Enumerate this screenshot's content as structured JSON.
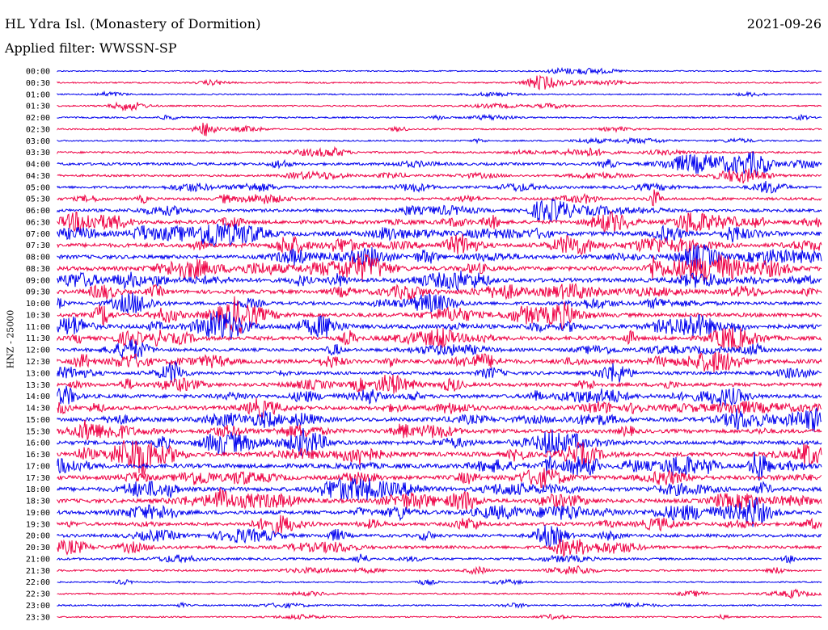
{
  "header": {
    "station": "HL Ydra Isl. (Monastery of Dormition)",
    "date": "2021-09-26",
    "filter": "Applied filter: WWSSN-SP"
  },
  "axis": {
    "ylabel": "HNZ - 25000"
  },
  "colors": {
    "even_trace": "#0000ee",
    "odd_trace": "#ee0044",
    "text": "#000000",
    "background": "#ffffff"
  },
  "chart_data": {
    "type": "line",
    "title": "HL Ydra Isl. (Monastery of Dormition)",
    "ylabel": "HNZ - 25000",
    "xlabel": "",
    "grid": false,
    "legend": "none",
    "rows": [
      {
        "time": "00:00",
        "activity": 0.05
      },
      {
        "time": "00:30",
        "activity": 0.12
      },
      {
        "time": "01:00",
        "activity": 0.08
      },
      {
        "time": "01:30",
        "activity": 0.12
      },
      {
        "time": "02:00",
        "activity": 0.15
      },
      {
        "time": "02:30",
        "activity": 0.15
      },
      {
        "time": "03:00",
        "activity": 0.12
      },
      {
        "time": "03:30",
        "activity": 0.25
      },
      {
        "time": "04:00",
        "activity": 0.45
      },
      {
        "time": "04:30",
        "activity": 0.3
      },
      {
        "time": "05:00",
        "activity": 0.4
      },
      {
        "time": "05:30",
        "activity": 0.45
      },
      {
        "time": "06:00",
        "activity": 0.55
      },
      {
        "time": "06:30",
        "activity": 0.7
      },
      {
        "time": "07:00",
        "activity": 0.9
      },
      {
        "time": "07:30",
        "activity": 0.8
      },
      {
        "time": "08:00",
        "activity": 0.75
      },
      {
        "time": "08:30",
        "activity": 0.85
      },
      {
        "time": "09:00",
        "activity": 0.8
      },
      {
        "time": "09:30",
        "activity": 0.75
      },
      {
        "time": "10:00",
        "activity": 0.6
      },
      {
        "time": "10:30",
        "activity": 0.8
      },
      {
        "time": "11:00",
        "activity": 0.85
      },
      {
        "time": "11:30",
        "activity": 0.8
      },
      {
        "time": "12:00",
        "activity": 0.6
      },
      {
        "time": "12:30",
        "activity": 0.8
      },
      {
        "time": "13:00",
        "activity": 0.6
      },
      {
        "time": "13:30",
        "activity": 0.7
      },
      {
        "time": "14:00",
        "activity": 0.75
      },
      {
        "time": "14:30",
        "activity": 0.75
      },
      {
        "time": "15:00",
        "activity": 0.8
      },
      {
        "time": "15:30",
        "activity": 0.75
      },
      {
        "time": "16:00",
        "activity": 0.8
      },
      {
        "time": "16:30",
        "activity": 0.9
      },
      {
        "time": "17:00",
        "activity": 0.9
      },
      {
        "time": "17:30",
        "activity": 0.8
      },
      {
        "time": "18:00",
        "activity": 0.85
      },
      {
        "time": "18:30",
        "activity": 0.8
      },
      {
        "time": "19:00",
        "activity": 0.75
      },
      {
        "time": "19:30",
        "activity": 0.6
      },
      {
        "time": "20:00",
        "activity": 0.6
      },
      {
        "time": "20:30",
        "activity": 0.55
      },
      {
        "time": "21:00",
        "activity": 0.35
      },
      {
        "time": "21:30",
        "activity": 0.25
      },
      {
        "time": "22:00",
        "activity": 0.1
      },
      {
        "time": "22:30",
        "activity": 0.12
      },
      {
        "time": "23:00",
        "activity": 0.12
      },
      {
        "time": "23:30",
        "activity": 0.1
      }
    ]
  }
}
